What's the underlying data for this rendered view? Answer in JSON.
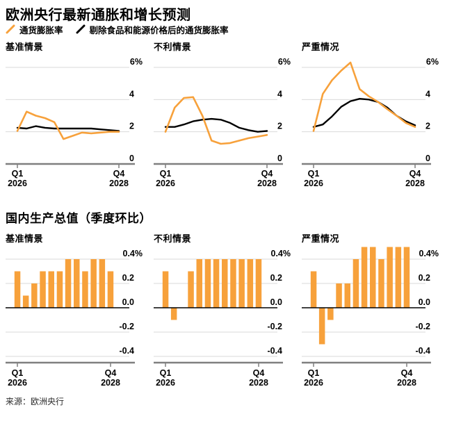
{
  "title": "欧洲央行最新通胀和增长预测",
  "legend": [
    {
      "label": "通货膨胀率",
      "color": "#F7A13B"
    },
    {
      "label": "剔除食品和能源价格后的通货膨胀率",
      "color": "#000000"
    }
  ],
  "gdp_section_title": "国内生产总值（季度环比）",
  "source": "来源：欧洲央行",
  "colors": {
    "inflation": "#F7A13B",
    "core_inflation": "#000000",
    "gdp_bar": "#F7A13B",
    "gridline": "#D9D9D9",
    "axis": "#7F7F7F",
    "zero_line": "#000000"
  },
  "axis": {
    "x_left": [
      "Q1",
      "2026"
    ],
    "x_right": [
      "Q4",
      "2028"
    ],
    "inflation_y_ticks": [
      "6%",
      "4",
      "2",
      "0"
    ],
    "inflation_y_values": [
      6,
      4,
      2,
      0
    ],
    "gdp_y_ticks": [
      "0.4%",
      "0.2",
      "0.0",
      "-0.2",
      "-0.4"
    ],
    "gdp_y_values": [
      0.4,
      0.2,
      0.0,
      -0.2,
      -0.4
    ]
  },
  "chart_data": [
    {
      "type": "line",
      "group": "通胀预测",
      "title": "基准情景",
      "unit": "%",
      "ylim": [
        0,
        6.5
      ],
      "x": [
        "2026 Q1",
        "2026 Q2",
        "2026 Q3",
        "2026 Q4",
        "2027 Q1",
        "2027 Q2",
        "2027 Q3",
        "2027 Q4",
        "2028 Q1",
        "2028 Q2",
        "2028 Q3",
        "2028 Q4"
      ],
      "series": [
        {
          "name": "通货膨胀率",
          "color": "#F7A13B",
          "values": [
            2.05,
            3.25,
            3.0,
            2.85,
            2.6,
            1.55,
            1.75,
            1.95,
            1.9,
            1.95,
            2.0,
            2.0
          ]
        },
        {
          "name": "剔除食品和能源价格后的通货膨胀率",
          "color": "#000000",
          "values": [
            2.25,
            2.2,
            2.35,
            2.25,
            2.2,
            2.2,
            2.2,
            2.2,
            2.2,
            2.15,
            2.1,
            2.05
          ]
        }
      ]
    },
    {
      "type": "line",
      "group": "通胀预测",
      "title": "不利情景",
      "unit": "%",
      "ylim": [
        0,
        6.5
      ],
      "x": [
        "2026 Q1",
        "2026 Q2",
        "2026 Q3",
        "2026 Q4",
        "2027 Q1",
        "2027 Q2",
        "2027 Q3",
        "2027 Q4",
        "2028 Q1",
        "2028 Q2",
        "2028 Q3",
        "2028 Q4"
      ],
      "series": [
        {
          "name": "通货膨胀率",
          "color": "#F7A13B",
          "values": [
            2.0,
            3.5,
            4.1,
            4.15,
            3.0,
            1.45,
            1.25,
            1.3,
            1.45,
            1.6,
            1.7,
            1.8
          ]
        },
        {
          "name": "剔除食品和能源价格后的通货膨胀率",
          "color": "#000000",
          "values": [
            2.3,
            2.3,
            2.45,
            2.65,
            2.75,
            2.8,
            2.75,
            2.55,
            2.25,
            2.1,
            2.0,
            2.05
          ]
        }
      ]
    },
    {
      "type": "line",
      "group": "通胀预测",
      "title": "严重情况",
      "unit": "%",
      "ylim": [
        0,
        6.5
      ],
      "x": [
        "2026 Q1",
        "2026 Q2",
        "2026 Q3",
        "2026 Q4",
        "2027 Q1",
        "2027 Q2",
        "2027 Q3",
        "2027 Q4",
        "2028 Q1",
        "2028 Q2",
        "2028 Q3",
        "2028 Q4"
      ],
      "series": [
        {
          "name": "通货膨胀率",
          "color": "#F7A13B",
          "values": [
            2.05,
            4.35,
            5.2,
            5.8,
            6.3,
            4.65,
            4.2,
            3.85,
            3.4,
            3.0,
            2.55,
            2.3
          ]
        },
        {
          "name": "剔除食品和能源价格后的通货膨胀率",
          "color": "#000000",
          "values": [
            2.3,
            2.45,
            2.95,
            3.55,
            3.9,
            4.05,
            4.0,
            3.85,
            3.5,
            3.0,
            2.65,
            2.4
          ]
        }
      ]
    },
    {
      "type": "bar",
      "group": "国内生产总值（季度环比）",
      "title": "基准情景",
      "unit": "%",
      "ylim": [
        -0.45,
        0.45
      ],
      "x": [
        "2026 Q1",
        "2026 Q2",
        "2026 Q3",
        "2026 Q4",
        "2027 Q1",
        "2027 Q2",
        "2027 Q3",
        "2027 Q4",
        "2028 Q1",
        "2028 Q2",
        "2028 Q3",
        "2028 Q4"
      ],
      "values": [
        0.3,
        0.1,
        0.2,
        0.3,
        0.3,
        0.3,
        0.4,
        0.4,
        0.3,
        0.4,
        0.4,
        0.3
      ]
    },
    {
      "type": "bar",
      "group": "国内生产总值（季度环比）",
      "title": "不利情景",
      "unit": "%",
      "ylim": [
        -0.45,
        0.45
      ],
      "x": [
        "2026 Q1",
        "2026 Q2",
        "2026 Q3",
        "2026 Q4",
        "2027 Q1",
        "2027 Q2",
        "2027 Q3",
        "2027 Q4",
        "2028 Q1",
        "2028 Q2",
        "2028 Q3",
        "2028 Q4"
      ],
      "values": [
        0.3,
        -0.1,
        0.0,
        0.3,
        0.4,
        0.4,
        0.4,
        0.4,
        0.4,
        0.4,
        0.4,
        0.4
      ]
    },
    {
      "type": "bar",
      "group": "国内生产总值（季度环比）",
      "title": "严重情况",
      "unit": "%",
      "ylim": [
        -0.45,
        0.45
      ],
      "x": [
        "2026 Q1",
        "2026 Q2",
        "2026 Q3",
        "2026 Q4",
        "2027 Q1",
        "2027 Q2",
        "2027 Q3",
        "2027 Q4",
        "2028 Q1",
        "2028 Q2",
        "2028 Q3",
        "2028 Q4"
      ],
      "values": [
        0.3,
        -0.3,
        -0.1,
        0.2,
        0.2,
        0.4,
        0.5,
        0.5,
        0.4,
        0.5,
        0.5,
        0.5
      ]
    }
  ]
}
